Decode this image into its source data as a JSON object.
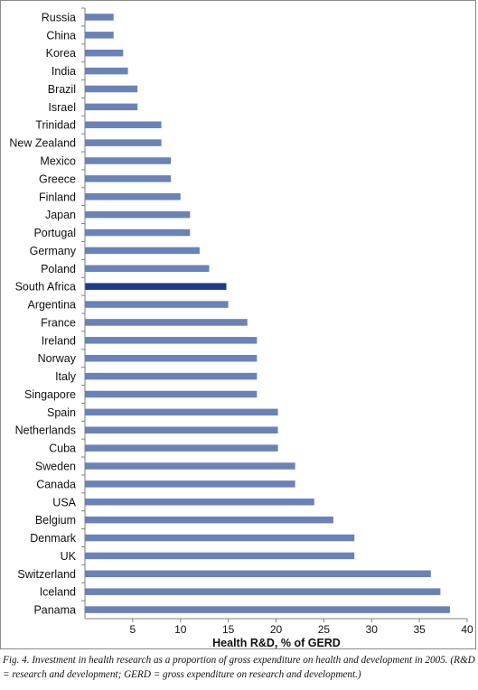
{
  "chart_data": {
    "type": "bar",
    "orientation": "horizontal",
    "categories": [
      "Russia",
      "China",
      "Korea",
      "India",
      "Brazil",
      "Israel",
      "Trinidad",
      "New Zealand",
      "Mexico",
      "Greece",
      "Finland",
      "Japan",
      "Portugal",
      "Germany",
      "Poland",
      "South Africa",
      "Argentina",
      "France",
      "Ireland",
      "Norway",
      "Italy",
      "Singapore",
      "Spain",
      "Netherlands",
      "Cuba",
      "Sweden",
      "Canada",
      "USA",
      "Belgium",
      "Denmark",
      "UK",
      "Switzerland",
      "Iceland",
      "Panama"
    ],
    "values": [
      3,
      3,
      4,
      4.5,
      5.5,
      5.5,
      8,
      8,
      9,
      9,
      10,
      11,
      11,
      12,
      13,
      14.8,
      15,
      17,
      18,
      18,
      18,
      18,
      20.2,
      20.2,
      20.2,
      22,
      22,
      24,
      26,
      28.2,
      28.2,
      36.2,
      37.2,
      38.2
    ],
    "highlight": "South Africa",
    "xlabel": "Health R&D, % of GERD",
    "ylabel": "",
    "xlim": [
      0,
      40
    ],
    "xticks": [
      5,
      10,
      15,
      20,
      25,
      30,
      35,
      40
    ],
    "grid": false,
    "colors": {
      "bar": "#6b82b8",
      "highlight": "#1f3a8a",
      "axis": "#7f7f7f"
    }
  },
  "caption": {
    "prefix": "Fig. 4.",
    "text": "Investment in health research as a proportion of gross expenditure on health and development in 2005. (R&D = research and development; GERD = gross expenditure on research and development.)"
  }
}
